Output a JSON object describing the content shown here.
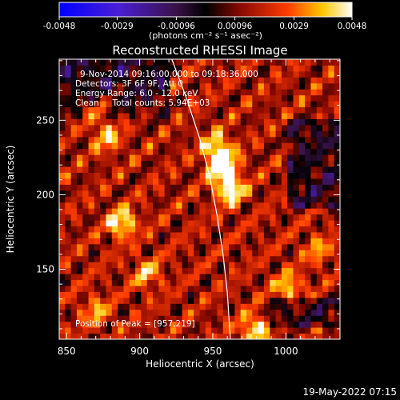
{
  "chart_data": {
    "type": "heatmap",
    "title": "Reconstructed RHESSI Image",
    "xlabel": "Heliocentric X (arcsec)",
    "ylabel": "Heliocentric Y (arcsec)",
    "xlim": [
      845,
      1037
    ],
    "ylim": [
      103,
      291
    ],
    "x_ticks": [
      850,
      900,
      950,
      1000
    ],
    "y_ticks": [
      150,
      200,
      250
    ],
    "colorbar": {
      "range": [
        -0.0048,
        0.0048
      ],
      "tick_values": [
        -0.0048,
        -0.0029,
        -0.00096,
        0.00096,
        0.0029,
        0.0048
      ],
      "tick_labels": [
        "-0.0048",
        "-0.0029",
        "-0.00096",
        "0.00096",
        "0.0029",
        "0.0048"
      ],
      "unit_label": "(photons cm⁻² s⁻¹ asec⁻²)"
    },
    "annotations": [
      "9-Nov-2014 09:16:00.000 to 09:18:36.000",
      "Detectors: 3F 6F 9F, Att 0",
      "Energy Range: 6.0 - 12.0 keV",
      "Clean     Total counts: 5.94E+03"
    ],
    "peak_label": "Position of Peak = [957,219]",
    "peak": {
      "x": 957,
      "y": 219
    },
    "limb_curve": [
      {
        "x": 922,
        "y": 291
      },
      {
        "x": 932,
        "y": 265
      },
      {
        "x": 941,
        "y": 238
      },
      {
        "x": 948,
        "y": 212
      },
      {
        "x": 953,
        "y": 186
      },
      {
        "x": 957,
        "y": 160
      },
      {
        "x": 960,
        "y": 134
      },
      {
        "x": 962,
        "y": 103
      }
    ],
    "bright_sources": [
      {
        "x": 957,
        "y": 219,
        "v": 0.0048
      },
      {
        "x": 962,
        "y": 203,
        "v": 0.0036
      },
      {
        "x": 953,
        "y": 232,
        "v": 0.003
      },
      {
        "x": 888,
        "y": 181,
        "v": 0.0034
      },
      {
        "x": 878,
        "y": 239,
        "v": 0.0024
      },
      {
        "x": 870,
        "y": 257,
        "v": 0.0016
      },
      {
        "x": 905,
        "y": 147,
        "v": 0.0022
      },
      {
        "x": 1002,
        "y": 138,
        "v": 0.0026
      },
      {
        "x": 1022,
        "y": 163,
        "v": 0.0018
      },
      {
        "x": 978,
        "y": 110,
        "v": 0.0032
      },
      {
        "x": 870,
        "y": 122,
        "v": 0.002
      }
    ]
  },
  "footer": {
    "timestamp": "19-May-2022 07:15"
  }
}
